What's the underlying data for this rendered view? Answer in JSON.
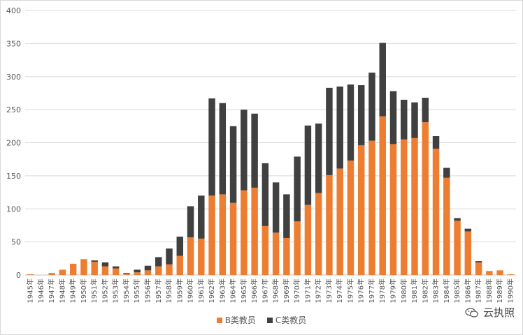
{
  "chart_data": {
    "type": "bar",
    "stacked": true,
    "title": "",
    "xlabel": "",
    "ylabel": "",
    "ylim": [
      0,
      400
    ],
    "yticks": [
      0,
      50,
      100,
      150,
      200,
      250,
      300,
      350,
      400
    ],
    "grid": true,
    "legend_position": "bottom",
    "categories": [
      "1945年",
      "1946年",
      "1947年",
      "1948年",
      "1949年",
      "1950年",
      "1951年",
      "1952年",
      "1953年",
      "1954年",
      "1955年",
      "1956年",
      "1957年",
      "1958年",
      "1959年",
      "1960年",
      "1961年",
      "1962年",
      "1963年",
      "1964年",
      "1965年",
      "1966年",
      "1967年",
      "1968年",
      "1969年",
      "1970年",
      "1971年",
      "1972年",
      "1973年",
      "1974年",
      "1975年",
      "1976年",
      "1977年",
      "1978年",
      "1979年",
      "1980年",
      "1981年",
      "1982年",
      "1983年",
      "1984年",
      "1985年",
      "1986年",
      "1987年",
      "1988年",
      "1989年",
      "1990年"
    ],
    "series": [
      {
        "name": "B类教员",
        "color": "#ed7d31",
        "values": [
          1,
          0,
          3,
          8,
          17,
          24,
          20,
          13,
          10,
          2,
          4,
          7,
          13,
          16,
          29,
          57,
          55,
          120,
          122,
          109,
          128,
          132,
          74,
          64,
          56,
          81,
          106,
          124,
          151,
          161,
          173,
          196,
          203,
          240,
          198,
          205,
          207,
          231,
          191,
          147,
          82,
          66,
          19,
          6,
          7,
          1
        ]
      },
      {
        "name": "C类教员",
        "color": "#404040",
        "values": [
          0,
          0,
          0,
          0,
          0,
          0,
          2,
          6,
          3,
          1,
          4,
          7,
          14,
          24,
          29,
          47,
          65,
          147,
          138,
          116,
          122,
          112,
          95,
          76,
          66,
          98,
          120,
          105,
          132,
          124,
          115,
          91,
          103,
          111,
          80,
          60,
          54,
          37,
          19,
          15,
          4,
          4,
          2,
          0,
          0,
          0
        ]
      }
    ]
  },
  "watermark": {
    "text": "云执照"
  }
}
